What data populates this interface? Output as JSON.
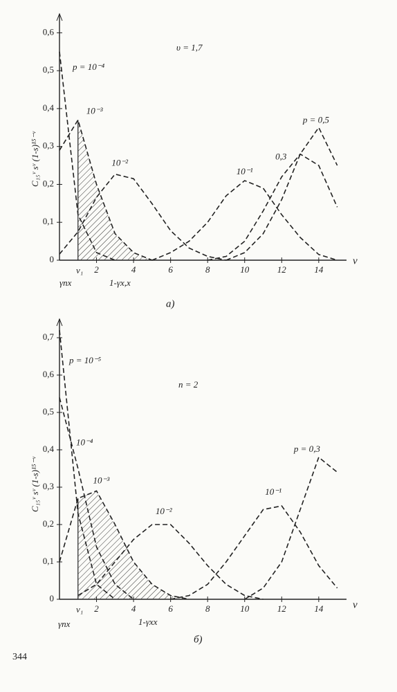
{
  "chart_data": [
    {
      "type": "line",
      "note": "υ = 1,7",
      "caption": "a)",
      "y_label": "C₁₅ᵛ sᵛ (1-s)¹⁵⁻ᵛ",
      "x_label": "ν",
      "annotations": [
        "ν₁",
        "γпх",
        "1-γx,x"
      ],
      "xlim": [
        0,
        15.5
      ],
      "ylim": [
        0,
        0.65
      ],
      "xticks": [
        2,
        4,
        6,
        8,
        10,
        12,
        14
      ],
      "yticks": [
        0,
        {
          "value": 0.1,
          "label": "0,1"
        },
        {
          "value": 0.2,
          "label": "0,2"
        },
        {
          "value": 0.3,
          "label": "0,3"
        },
        {
          "value": 0.4,
          "label": "0,4"
        },
        {
          "value": 0.5,
          "label": "0,5"
        },
        {
          "value": 0.6,
          "label": "0,6"
        }
      ],
      "series": [
        {
          "name": "p = 10⁻⁴",
          "color": "#222",
          "x": [
            0,
            1,
            2,
            3
          ],
          "values": [
            0.55,
            0.12,
            0.02,
            0
          ]
        },
        {
          "name": "10⁻³",
          "color": "#222",
          "x": [
            0,
            1,
            2,
            3,
            4,
            5
          ],
          "values": [
            0.29,
            0.37,
            0.2,
            0.07,
            0.02,
            0
          ]
        },
        {
          "name": "10⁻²",
          "color": "#222",
          "x": [
            0,
            1,
            2,
            3,
            4,
            5,
            6,
            7,
            8,
            9
          ],
          "values": [
            0.016,
            0.075,
            0.166,
            0.227,
            0.215,
            0.149,
            0.078,
            0.032,
            0.01,
            0
          ]
        },
        {
          "name": "10⁻¹",
          "color": "#222",
          "x": [
            5,
            6,
            7,
            8,
            9,
            10,
            11,
            12,
            13,
            14,
            15
          ],
          "values": [
            0,
            0.02,
            0.05,
            0.1,
            0.17,
            0.21,
            0.19,
            0.12,
            0.06,
            0.015,
            0
          ]
        },
        {
          "name": "0,3",
          "color": "#222",
          "x": [
            8,
            9,
            10,
            11,
            12,
            13,
            14,
            15
          ],
          "values": [
            0,
            0.01,
            0.05,
            0.13,
            0.22,
            0.28,
            0.25,
            0.14
          ]
        },
        {
          "name": "p = 0,5",
          "color": "#222",
          "x": [
            9,
            10,
            11,
            12,
            13,
            14,
            15
          ],
          "values": [
            0,
            0.02,
            0.07,
            0.16,
            0.28,
            0.35,
            0.25
          ]
        }
      ]
    },
    {
      "type": "line",
      "note": "n = 2",
      "caption": "б)",
      "y_label": "C₁₅ᵛ sᵛ (1-s)¹⁵⁻ᵛ",
      "x_label": "ν",
      "annotations": [
        "ν₁",
        "γпх",
        "1-γxx"
      ],
      "xlim": [
        0,
        15.5
      ],
      "ylim": [
        0,
        0.75
      ],
      "xticks": [
        2,
        4,
        6,
        8,
        10,
        12,
        14
      ],
      "yticks": [
        0,
        {
          "value": 0.1,
          "label": "0,1"
        },
        {
          "value": 0.2,
          "label": "0,2"
        },
        {
          "value": 0.3,
          "label": "0,3"
        },
        {
          "value": 0.4,
          "label": "0,4"
        },
        {
          "value": 0.5,
          "label": "0,5"
        },
        {
          "value": 0.6,
          "label": "0,6"
        },
        {
          "value": 0.7,
          "label": "0,7"
        }
      ],
      "series": [
        {
          "name": "p = 10⁻⁵",
          "color": "#222",
          "x": [
            0,
            1,
            2,
            3
          ],
          "values": [
            0.72,
            0.23,
            0.04,
            0
          ]
        },
        {
          "name": "10⁻⁴",
          "color": "#222",
          "x": [
            0,
            1,
            2,
            3,
            4
          ],
          "values": [
            0.54,
            0.35,
            0.14,
            0.04,
            0
          ]
        },
        {
          "name": "10⁻³",
          "color": "#222",
          "x": [
            0,
            1,
            2,
            3,
            4,
            5,
            6,
            7
          ],
          "values": [
            0.1,
            0.27,
            0.29,
            0.2,
            0.1,
            0.04,
            0.01,
            0
          ]
        },
        {
          "name": "10⁻²",
          "color": "#222",
          "x": [
            1,
            2,
            3,
            4,
            5,
            6,
            7,
            8,
            9,
            10,
            11
          ],
          "values": [
            0.01,
            0.04,
            0.1,
            0.16,
            0.2,
            0.2,
            0.15,
            0.09,
            0.04,
            0.01,
            0
          ]
        },
        {
          "name": "10⁻¹",
          "color": "#222",
          "x": [
            6,
            7,
            8,
            9,
            10,
            11,
            12,
            13,
            14,
            15
          ],
          "values": [
            0,
            0.01,
            0.04,
            0.1,
            0.17,
            0.24,
            0.25,
            0.18,
            0.09,
            0.03
          ]
        },
        {
          "name": "p = 0,3",
          "color": "#222",
          "x": [
            10,
            11,
            12,
            13,
            14,
            15
          ],
          "values": [
            0,
            0.03,
            0.1,
            0.24,
            0.38,
            0.34
          ]
        }
      ]
    }
  ],
  "page_number": "344"
}
